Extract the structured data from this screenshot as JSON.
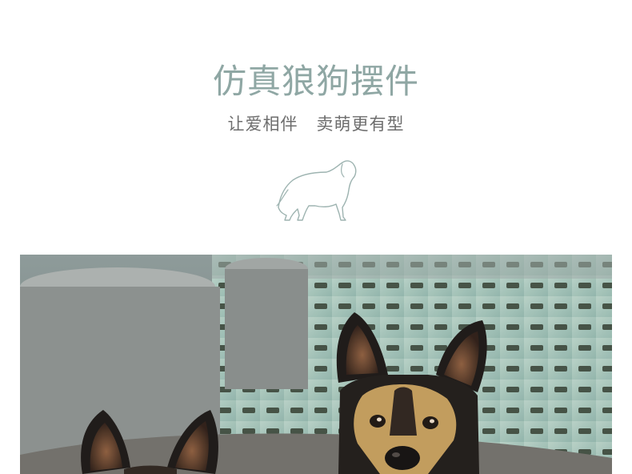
{
  "header": {
    "title": "仿真狼狗摆件",
    "subtitle": "让爱相伴   卖萌更有型"
  },
  "icons": {
    "divider_icon": "dog-outline-icon"
  },
  "colors": {
    "title": "#8fa7a4",
    "subtitle": "#6d6d6d",
    "icon_stroke": "#9db3b0"
  },
  "photo": {
    "subject": "two german shepherd statues in a garden"
  }
}
